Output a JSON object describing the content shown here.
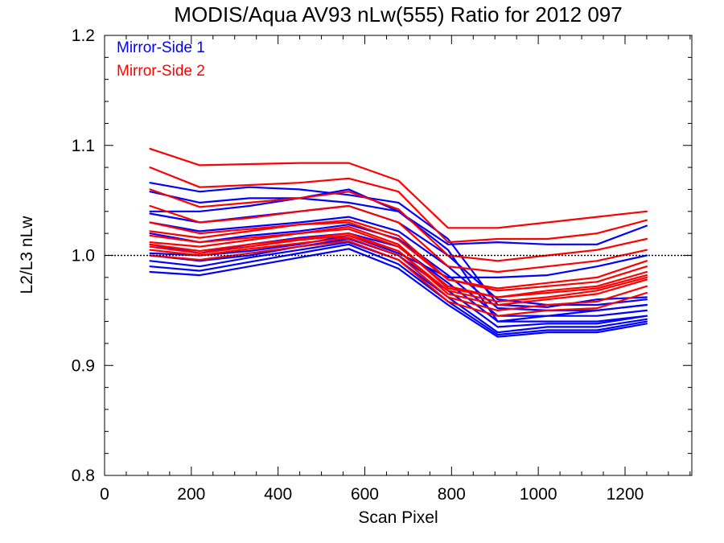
{
  "chart_data": {
    "type": "line",
    "title": "MODIS/Aqua AV93 nLw(555) Ratio for 2012 097",
    "xlabel": "Scan Pixel",
    "ylabel": "L2/L3 nLw",
    "xlim": [
      0,
      1354
    ],
    "ylim": [
      0.8,
      1.2
    ],
    "xticks": [
      "0",
      "200",
      "400",
      "600",
      "800",
      "1000",
      "1200"
    ],
    "yticks": [
      "0.8",
      "0.9",
      "1.0",
      "1.1",
      "1.2"
    ],
    "reference_line": 1.0,
    "legend_position": "top-left",
    "x_range_of_series": [
      105,
      1250
    ],
    "legend": [
      {
        "name": "Mirror-Side 1",
        "color": "#0000ff"
      },
      {
        "name": "Mirror-Side 2",
        "color": "#ff0000"
      }
    ],
    "series": [
      {
        "group": "Mirror-Side 1",
        "color": "#0000ff",
        "y": [
          1.066,
          1.058,
          1.062,
          1.06,
          1.055,
          1.048,
          1.015,
          0.955,
          0.953,
          0.96,
          0.962
        ]
      },
      {
        "group": "Mirror-Side 1",
        "color": "#0000ff",
        "y": [
          1.058,
          1.048,
          1.052,
          1.052,
          1.048,
          1.04,
          1.005,
          0.94,
          0.945,
          0.95,
          0.955
        ]
      },
      {
        "group": "Mirror-Side 1",
        "color": "#0000ff",
        "y": [
          1.038,
          1.03,
          1.035,
          1.04,
          1.045,
          1.03,
          1.0,
          0.96,
          0.955,
          0.955,
          0.96
        ]
      },
      {
        "group": "Mirror-Side 1",
        "color": "#0000ff",
        "y": [
          1.03,
          1.022,
          1.026,
          1.03,
          1.035,
          1.022,
          0.99,
          0.952,
          0.95,
          0.95,
          0.955
        ]
      },
      {
        "group": "Mirror-Side 1",
        "color": "#0000ff",
        "y": [
          1.02,
          1.012,
          1.018,
          1.022,
          1.028,
          1.015,
          0.982,
          0.945,
          0.945,
          0.945,
          0.95
        ]
      },
      {
        "group": "Mirror-Side 1",
        "color": "#0000ff",
        "y": [
          1.01,
          1.002,
          1.01,
          1.016,
          1.02,
          1.008,
          0.975,
          0.94,
          0.94,
          0.94,
          0.945
        ]
      },
      {
        "group": "Mirror-Side 1",
        "color": "#0000ff",
        "y": [
          1.0,
          0.995,
          1.0,
          1.008,
          1.015,
          1.0,
          0.968,
          0.935,
          0.938,
          0.938,
          0.945
        ]
      },
      {
        "group": "Mirror-Side 1",
        "color": "#0000ff",
        "y": [
          0.995,
          0.99,
          0.998,
          1.005,
          1.012,
          0.996,
          0.962,
          0.93,
          0.935,
          0.935,
          0.942
        ]
      },
      {
        "group": "Mirror-Side 1",
        "color": "#0000ff",
        "y": [
          0.99,
          0.986,
          0.994,
          1.002,
          1.01,
          0.992,
          0.958,
          0.928,
          0.932,
          0.932,
          0.94
        ]
      },
      {
        "group": "Mirror-Side 1",
        "color": "#0000ff",
        "y": [
          0.985,
          0.982,
          0.99,
          0.998,
          1.006,
          0.988,
          0.955,
          0.926,
          0.93,
          0.93,
          0.938
        ]
      },
      {
        "group": "Mirror-Side 1",
        "color": "#0000ff",
        "y": [
          1.04,
          1.04,
          1.045,
          1.052,
          1.06,
          1.04,
          1.01,
          1.012,
          1.01,
          1.01,
          1.027
        ]
      },
      {
        "group": "Mirror-Side 1",
        "color": "#0000ff",
        "y": [
          1.002,
          1.0,
          1.004,
          1.01,
          1.018,
          1.002,
          0.98,
          0.98,
          0.982,
          0.99,
          1.0
        ]
      },
      {
        "group": "Mirror-Side 2",
        "color": "#ff0000",
        "y": [
          1.097,
          1.082,
          1.083,
          1.084,
          1.084,
          1.068,
          1.025,
          1.025,
          1.03,
          1.035,
          1.04
        ]
      },
      {
        "group": "Mirror-Side 2",
        "color": "#ff0000",
        "y": [
          1.08,
          1.062,
          1.064,
          1.066,
          1.07,
          1.058,
          1.012,
          1.015,
          1.015,
          1.02,
          1.032
        ]
      },
      {
        "group": "Mirror-Side 2",
        "color": "#ff0000",
        "y": [
          1.06,
          1.044,
          1.048,
          1.052,
          1.058,
          1.042,
          1.0,
          0.995,
          1.0,
          1.005,
          1.015
        ]
      },
      {
        "group": "Mirror-Side 2",
        "color": "#ff0000",
        "y": [
          1.045,
          1.03,
          1.034,
          1.04,
          1.045,
          1.03,
          0.99,
          0.985,
          0.99,
          0.995,
          1.005
        ]
      },
      {
        "group": "Mirror-Side 2",
        "color": "#ff0000",
        "y": [
          1.03,
          1.02,
          1.024,
          1.028,
          1.032,
          1.018,
          0.978,
          0.97,
          0.975,
          0.98,
          0.995
        ]
      },
      {
        "group": "Mirror-Side 2",
        "color": "#ff0000",
        "y": [
          1.018,
          1.012,
          1.016,
          1.02,
          1.026,
          1.01,
          0.97,
          0.962,
          0.968,
          0.972,
          0.985
        ]
      },
      {
        "group": "Mirror-Side 2",
        "color": "#ff0000",
        "y": [
          1.01,
          1.004,
          1.01,
          1.015,
          1.02,
          1.004,
          0.965,
          0.955,
          0.96,
          0.965,
          0.978
        ]
      },
      {
        "group": "Mirror-Side 2",
        "color": "#ff0000",
        "y": [
          1.005,
          1.0,
          1.006,
          1.011,
          1.016,
          1.0,
          0.962,
          0.95,
          0.955,
          0.958,
          0.972
        ]
      },
      {
        "group": "Mirror-Side 2",
        "color": "#ff0000",
        "y": [
          1.0,
          0.996,
          1.002,
          1.008,
          1.013,
          0.996,
          0.958,
          0.945,
          0.95,
          0.952,
          0.966
        ]
      },
      {
        "group": "Mirror-Side 2",
        "color": "#ff0000",
        "y": [
          1.012,
          1.008,
          1.014,
          1.02,
          1.024,
          1.008,
          0.972,
          0.962,
          0.966,
          0.97,
          0.982
        ]
      },
      {
        "group": "Mirror-Side 2",
        "color": "#ff0000",
        "y": [
          1.022,
          1.016,
          1.022,
          1.028,
          1.03,
          1.014,
          0.978,
          0.968,
          0.972,
          0.976,
          0.99
        ]
      },
      {
        "group": "Mirror-Side 2",
        "color": "#ff0000",
        "y": [
          1.008,
          1.002,
          1.008,
          1.014,
          1.018,
          1.004,
          0.968,
          0.958,
          0.962,
          0.968,
          0.98
        ]
      }
    ]
  }
}
